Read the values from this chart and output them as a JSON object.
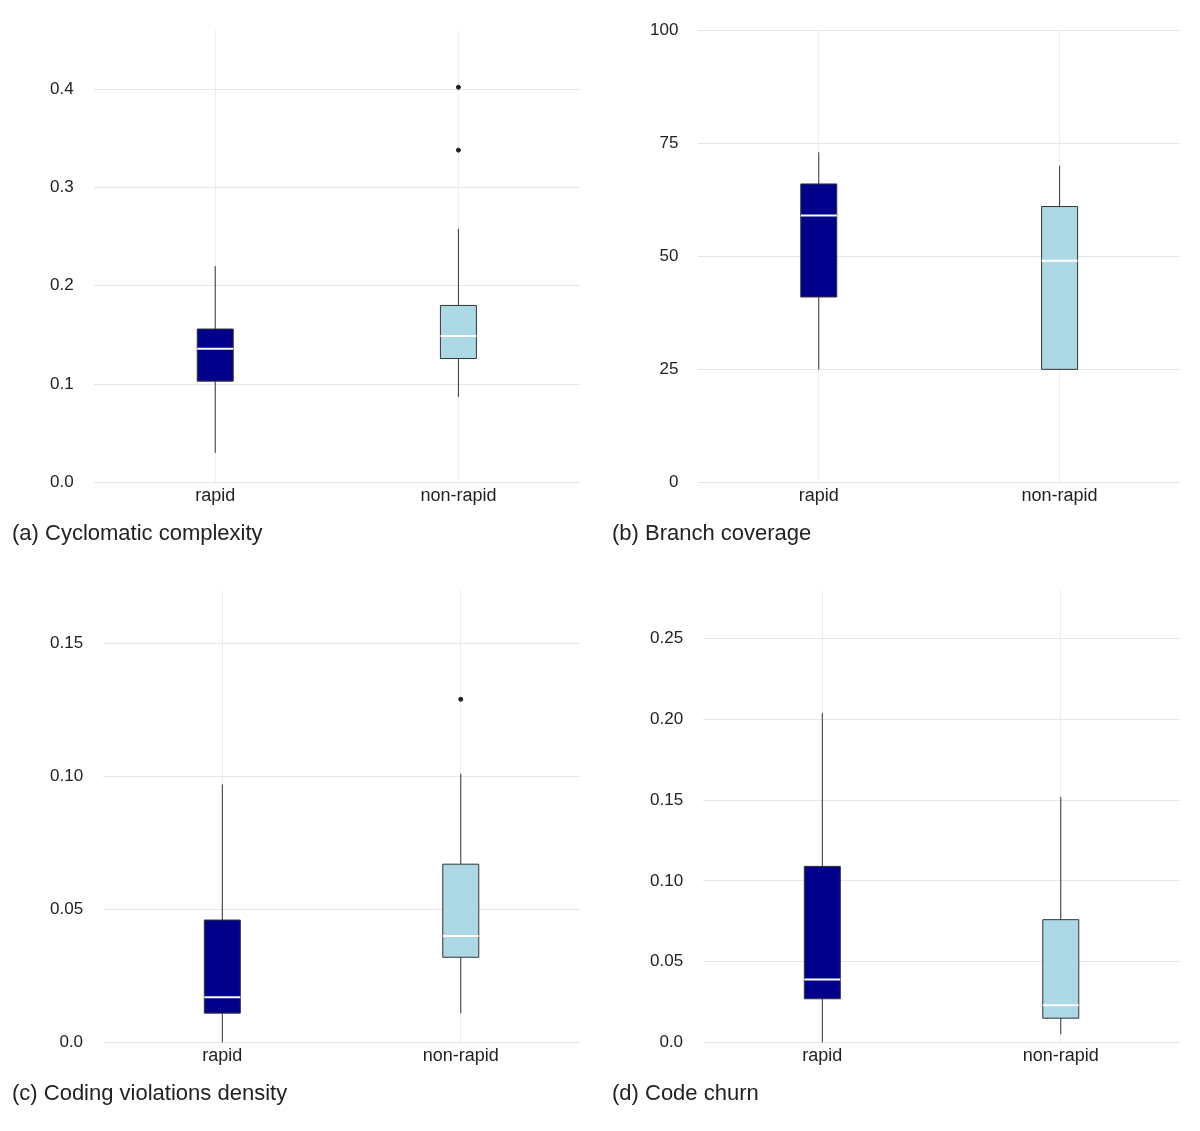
{
  "chart_data": [
    {
      "type": "box",
      "title": "(a) Cyclomatic complexity",
      "categories": [
        "rapid",
        "non-rapid"
      ],
      "colors": [
        "#00008b",
        "#add8e6"
      ],
      "grid": true,
      "ylim": [
        0,
        0.46
      ],
      "yticks": [
        {
          "value": 0,
          "label": "0.0"
        },
        {
          "value": 0.1,
          "label": "0.1"
        },
        {
          "value": 0.2,
          "label": "0.2"
        },
        {
          "value": 0.3,
          "label": "0.3"
        },
        {
          "value": 0.4,
          "label": "0.4"
        }
      ],
      "boxes": [
        {
          "low": 0.03,
          "q1": 0.103,
          "median": 0.136,
          "q3": 0.156,
          "high": 0.22
        },
        {
          "low": 0.087,
          "q1": 0.126,
          "median": 0.149,
          "q3": 0.18,
          "high": 0.258,
          "outliers": [
            0.338,
            0.402
          ]
        }
      ]
    },
    {
      "type": "box",
      "title": "(b) Branch coverage",
      "categories": [
        "rapid",
        "non-rapid"
      ],
      "colors": [
        "#00008b",
        "#add8e6"
      ],
      "grid": true,
      "ylim": [
        0,
        100
      ],
      "yticks": [
        0,
        25,
        50,
        75,
        100
      ],
      "boxes": [
        {
          "low": 25,
          "q1": 41,
          "median": 59,
          "q3": 66,
          "high": 73
        },
        {
          "low": 25,
          "q1": 25,
          "median": 49,
          "q3": 61,
          "high": 70
        }
      ]
    },
    {
      "type": "box",
      "title": "(c) Coding violations density",
      "categories": [
        "rapid",
        "non-rapid"
      ],
      "colors": [
        "#00008b",
        "#add8e6"
      ],
      "grid": true,
      "ylim": [
        0,
        0.17
      ],
      "yticks": [
        {
          "value": 0,
          "label": "0.0"
        },
        {
          "value": 0.05,
          "label": "0.05"
        },
        {
          "value": 0.1,
          "label": "0.10"
        },
        {
          "value": 0.15,
          "label": "0.15"
        }
      ],
      "boxes": [
        {
          "low": 0,
          "q1": 0.011,
          "median": 0.017,
          "q3": 0.046,
          "high": 0.097
        },
        {
          "low": 0.011,
          "q1": 0.032,
          "median": 0.04,
          "q3": 0.067,
          "high": 0.101,
          "outliers": [
            0.129
          ]
        }
      ]
    },
    {
      "type": "box",
      "title": "(d) Code churn",
      "categories": [
        "rapid",
        "non-rapid"
      ],
      "colors": [
        "#00008b",
        "#add8e6"
      ],
      "grid": true,
      "ylim": [
        0,
        0.28
      ],
      "yticks": [
        {
          "value": 0,
          "label": "0.0"
        },
        {
          "value": 0.05,
          "label": "0.05"
        },
        {
          "value": 0.1,
          "label": "0.10"
        },
        {
          "value": 0.15,
          "label": "0.15"
        },
        {
          "value": 0.2,
          "label": "0.20"
        },
        {
          "value": 0.25,
          "label": "0.25"
        }
      ],
      "boxes": [
        {
          "low": 0,
          "q1": 0.027,
          "median": 0.039,
          "q3": 0.109,
          "high": 0.204
        },
        {
          "low": 0.005,
          "q1": 0.015,
          "median": 0.023,
          "q3": 0.076,
          "high": 0.152
        }
      ]
    }
  ]
}
